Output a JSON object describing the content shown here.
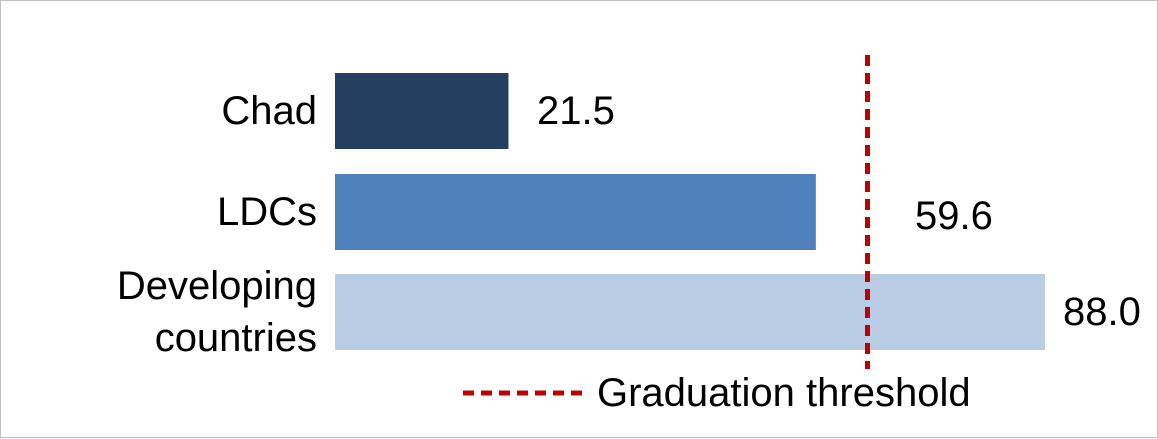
{
  "chart_data": {
    "type": "bar",
    "orientation": "horizontal",
    "categories": [
      "Chad",
      "LDCs",
      [
        "Developing",
        "countries"
      ]
    ],
    "values": [
      21.5,
      59.6,
      88.0
    ],
    "value_labels": [
      "21.5",
      "59.6",
      "88.0"
    ],
    "colors": [
      "#243f60",
      "#4f81bd",
      "#b9cde5"
    ],
    "threshold": {
      "value": 66,
      "label": "Graduation threshold",
      "color": "#c00000",
      "style": "dashed"
    },
    "xlim": [
      0,
      88
    ]
  }
}
